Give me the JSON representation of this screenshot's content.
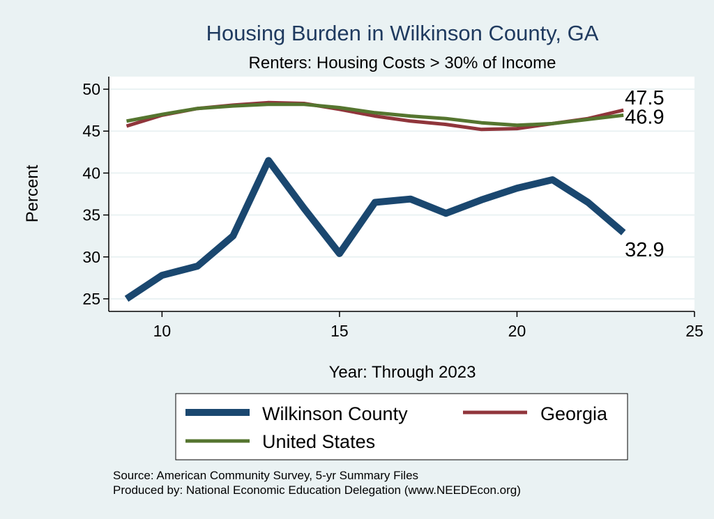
{
  "chart_data": {
    "type": "line",
    "title": "Housing Burden in Wilkinson County, GA",
    "subtitle": "Renters: Housing Costs > 30% of Income",
    "xlabel": "Year: Through 2023",
    "ylabel": "Percent",
    "xlim": [
      8.5,
      25
    ],
    "ylim": [
      23.5,
      51.5
    ],
    "xticks": [
      10,
      15,
      20,
      25
    ],
    "yticks": [
      25,
      30,
      35,
      40,
      45,
      50
    ],
    "grid": true,
    "series": [
      {
        "name": "Wilkinson County",
        "color": "#1a476f",
        "x": [
          9,
          10,
          11,
          12,
          13,
          14,
          15,
          16,
          17,
          18,
          19,
          20,
          21,
          22,
          23
        ],
        "values": [
          25.0,
          27.8,
          28.9,
          32.5,
          41.5,
          35.8,
          30.4,
          36.5,
          36.9,
          35.2,
          36.8,
          38.2,
          39.2,
          36.5,
          32.9
        ],
        "end_label": "32.9"
      },
      {
        "name": "Georgia",
        "color": "#90353b",
        "x": [
          9,
          10,
          11,
          12,
          13,
          14,
          15,
          16,
          17,
          18,
          19,
          20,
          21,
          22,
          23
        ],
        "values": [
          45.6,
          46.9,
          47.7,
          48.1,
          48.4,
          48.3,
          47.6,
          46.8,
          46.2,
          45.8,
          45.2,
          45.3,
          45.9,
          46.5,
          47.5
        ],
        "end_label": "47.5"
      },
      {
        "name": "United States",
        "color": "#55752f",
        "x": [
          9,
          10,
          11,
          12,
          13,
          14,
          15,
          16,
          17,
          18,
          19,
          20,
          21,
          22,
          23
        ],
        "values": [
          46.2,
          47.0,
          47.7,
          48.0,
          48.2,
          48.2,
          47.8,
          47.2,
          46.8,
          46.5,
          46.0,
          45.7,
          45.9,
          46.4,
          46.9
        ],
        "end_label": "46.9"
      }
    ],
    "legend": {
      "position": "bottom",
      "entries": [
        "Wilkinson County",
        "Georgia",
        "United States"
      ]
    },
    "notes": [
      "Source: American Community Survey, 5-yr Summary Files",
      "Produced by: National Economic Education Delegation (www.NEEDEcon.org)"
    ]
  },
  "colors": {
    "background": "#eaf2f3",
    "plot_background": "#ffffff",
    "grid": "#eaf2f3",
    "title": "#1f3a5f"
  }
}
